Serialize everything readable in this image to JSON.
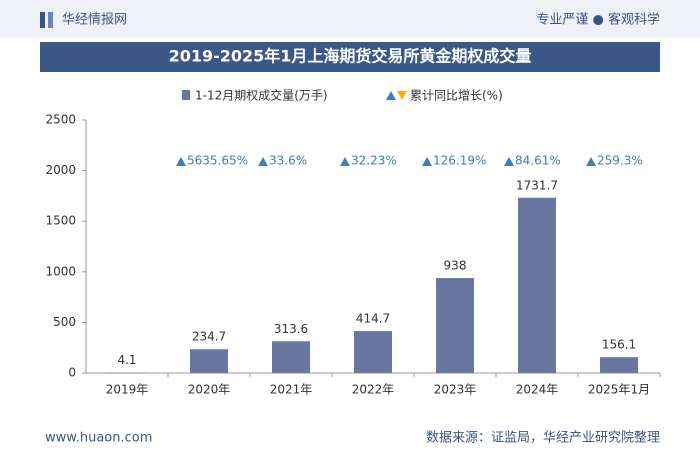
{
  "header": {
    "brand": "华经情报网",
    "slogan": "专业严谨 ● 客观科学"
  },
  "footer": {
    "site": "www.huaon.com",
    "source": "数据来源：证监局，华经产业研究院整理"
  },
  "chart_data": {
    "type": "bar",
    "title": "2019-2025年1月上海期货交易所黄金期权成交量",
    "categories": [
      "2019年",
      "2020年",
      "2021年",
      "2022年",
      "2023年",
      "2024年",
      "2025年1月"
    ],
    "series": [
      {
        "name": "1-12月期权成交量(万手)",
        "color": "#6877a0",
        "values": [
          4.1,
          234.7,
          313.6,
          414.7,
          938,
          1731.7,
          156.1
        ]
      },
      {
        "name": "累计同比增长(%)",
        "color": "#3f7db8",
        "values": [
          null,
          5635.65,
          33.6,
          32.23,
          126.19,
          84.61,
          259.3
        ],
        "value_labels": [
          null,
          "5635.65%",
          "33.6%",
          "32.23%",
          "126.19%",
          "84.61%",
          "259.3%"
        ]
      }
    ],
    "ylim": [
      0,
      2500
    ],
    "yticks": [
      0,
      500,
      1000,
      1500,
      2000,
      2500
    ],
    "grid": false
  }
}
